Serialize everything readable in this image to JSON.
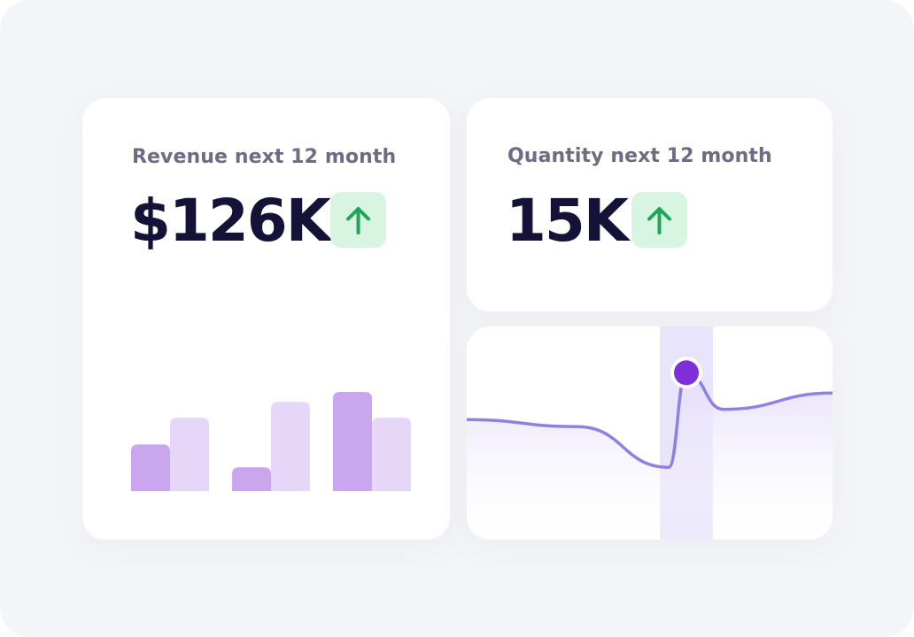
{
  "cards": {
    "revenue": {
      "label": "Revenue next 12 month",
      "value": "$126K",
      "trend": "up"
    },
    "quantity": {
      "label": "Quantity next 12 month",
      "value": "15K",
      "trend": "up"
    }
  },
  "icons": {
    "trend_up": "arrow-up-icon"
  },
  "colors": {
    "background": "#f4f5f8",
    "card": "#ffffff",
    "label": "#6e6b84",
    "value": "#141236",
    "badge_bg": "#d8f5e1",
    "badge_arrow": "#1fa65a",
    "bar_dark": "#c9a6ee",
    "bar_light": "#e6d6f7",
    "line": "#8f7fe6",
    "highlight_band": "#e8e4fb",
    "marker": "#7e2fd9"
  },
  "bar_chart": {
    "groups": [
      {
        "dark": 0.47,
        "light": 0.74
      },
      {
        "dark": 0.24,
        "light": 0.9
      },
      {
        "dark": 1.0,
        "light": 0.74
      }
    ]
  },
  "trend_chart": {
    "points": [
      0.52,
      0.45,
      0.05,
      0.98,
      0.62,
      0.78
    ],
    "highlight_index": 3
  }
}
